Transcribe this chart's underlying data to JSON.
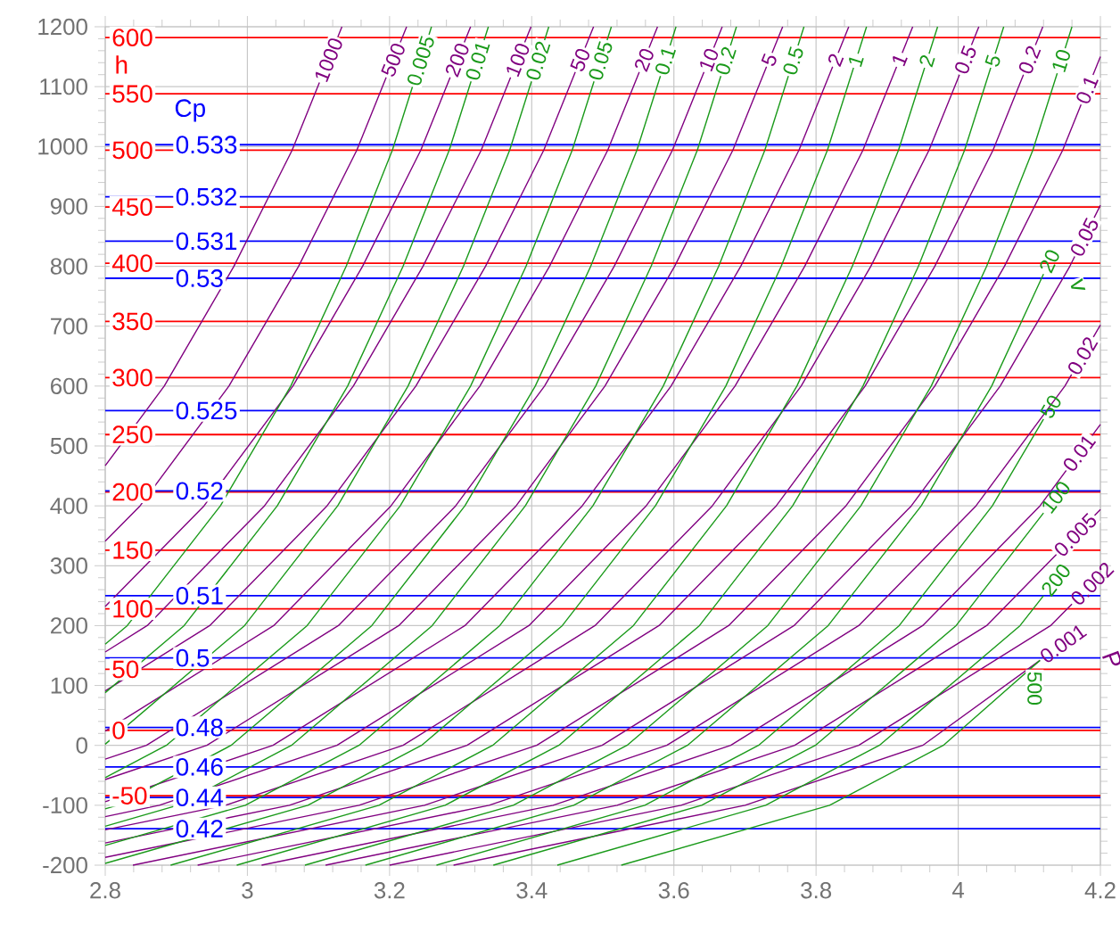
{
  "chart_data": {
    "type": "line",
    "xlim": [
      2.8,
      4.2
    ],
    "ylim": [
      -200,
      1200
    ],
    "xticks": [
      2.8,
      3,
      3.2,
      3.4,
      3.6,
      3.8,
      4,
      4.2
    ],
    "yticks": [
      -200,
      -100,
      0,
      100,
      200,
      300,
      400,
      500,
      600,
      700,
      800,
      900,
      1000,
      1100,
      1200
    ],
    "grid": true,
    "marker": "none",
    "line_style": "solid",
    "annotations": [
      "h",
      "Cp",
      "v",
      "P"
    ],
    "series": [
      {
        "name": "600",
        "color": "#ff0000",
        "x": [
          2.8,
          4.2
        ],
        "values": [
          1182,
          1182
        ]
      },
      {
        "name": "550",
        "color": "#ff0000",
        "x": [
          2.8,
          4.2
        ],
        "values": [
          1088,
          1088
        ]
      },
      {
        "name": "500",
        "color": "#ff0000",
        "x": [
          2.8,
          4.2
        ],
        "values": [
          994,
          994
        ]
      },
      {
        "name": "450",
        "color": "#ff0000",
        "x": [
          2.8,
          4.2
        ],
        "values": [
          899,
          899
        ]
      },
      {
        "name": "400",
        "color": "#ff0000",
        "x": [
          2.8,
          4.2
        ],
        "values": [
          805,
          805
        ]
      },
      {
        "name": "350",
        "color": "#ff0000",
        "x": [
          2.8,
          4.2
        ],
        "values": [
          708,
          708
        ]
      },
      {
        "name": "300",
        "color": "#ff0000",
        "x": [
          2.8,
          4.2
        ],
        "values": [
          614,
          614
        ]
      },
      {
        "name": "250",
        "color": "#ff0000",
        "x": [
          2.8,
          4.2
        ],
        "values": [
          519,
          519
        ]
      },
      {
        "name": "200",
        "color": "#ff0000",
        "x": [
          2.8,
          4.2
        ],
        "values": [
          423,
          423
        ]
      },
      {
        "name": "150",
        "color": "#ff0000",
        "x": [
          2.8,
          4.2
        ],
        "values": [
          326,
          326
        ]
      },
      {
        "name": "100",
        "color": "#ff0000",
        "x": [
          2.8,
          4.2
        ],
        "values": [
          228,
          228
        ]
      },
      {
        "name": "50",
        "color": "#ff0000",
        "x": [
          2.8,
          4.2
        ],
        "values": [
          127,
          127
        ]
      },
      {
        "name": "0",
        "color": "#ff0000",
        "x": [
          2.8,
          4.2
        ],
        "values": [
          25,
          25
        ]
      },
      {
        "name": "-50",
        "color": "#ff0000",
        "x": [
          2.8,
          4.2
        ],
        "values": [
          -84,
          -84
        ]
      },
      {
        "name": "0.533",
        "color": "#0000ff",
        "x": [
          2.8,
          4.2
        ],
        "values": [
          1003,
          1003
        ]
      },
      {
        "name": "0.532",
        "color": "#0000ff",
        "x": [
          2.8,
          4.2
        ],
        "values": [
          916,
          916
        ]
      },
      {
        "name": "0.531",
        "color": "#0000ff",
        "x": [
          2.8,
          4.2
        ],
        "values": [
          842,
          842
        ]
      },
      {
        "name": "0.53",
        "color": "#0000ff",
        "x": [
          2.8,
          4.2
        ],
        "values": [
          780,
          780
        ]
      },
      {
        "name": "0.525",
        "color": "#0000ff",
        "x": [
          2.8,
          4.2
        ],
        "values": [
          559,
          559
        ]
      },
      {
        "name": "0.52",
        "color": "#0000ff",
        "x": [
          2.8,
          4.2
        ],
        "values": [
          425,
          425
        ]
      },
      {
        "name": "0.51",
        "color": "#0000ff",
        "x": [
          2.8,
          4.2
        ],
        "values": [
          250,
          250
        ]
      },
      {
        "name": "0.5",
        "color": "#0000ff",
        "x": [
          2.8,
          4.2
        ],
        "values": [
          146,
          146
        ]
      },
      {
        "name": "0.48",
        "color": "#0000ff",
        "x": [
          2.8,
          4.2
        ],
        "values": [
          30,
          30
        ]
      },
      {
        "name": "0.46",
        "color": "#0000ff",
        "x": [
          2.8,
          4.2
        ],
        "values": [
          -36,
          -36
        ]
      },
      {
        "name": "0.44",
        "color": "#0000ff",
        "x": [
          2.8,
          4.2
        ],
        "values": [
          -87,
          -87
        ]
      },
      {
        "name": "0.42",
        "color": "#0000ff",
        "x": [
          2.8,
          4.2
        ],
        "values": [
          -139,
          -139
        ]
      },
      {
        "name": "1000",
        "color": "#800080",
        "x": [
          2.8,
          2.883,
          2.981,
          3.063,
          3.133
        ],
        "values": [
          467,
          600,
          800,
          994,
          1200
        ]
      },
      {
        "name": "500",
        "color": "#800080",
        "x": [
          2.8,
          2.849,
          2.974,
          3.072,
          3.154,
          3.224
        ],
        "values": [
          341,
          400,
          600,
          800,
          994,
          1200
        ]
      },
      {
        "name": "200",
        "color": "#800080",
        "x": [
          2.8,
          2.939,
          3.064,
          3.162,
          3.244,
          3.314
        ],
        "values": [
          232,
          400,
          600,
          800,
          994,
          1200
        ]
      },
      {
        "name": "100",
        "color": "#800080",
        "x": [
          2.8,
          2.859,
          3.024,
          3.149,
          3.247,
          3.329,
          3.399
        ],
        "values": [
          156,
          200,
          400,
          600,
          800,
          994,
          1200
        ]
      },
      {
        "name": "50",
        "color": "#800080",
        "x": [
          2.8,
          2.947,
          3.112,
          3.237,
          3.335,
          3.417,
          3.487
        ],
        "values": [
          91,
          200,
          400,
          600,
          800,
          994,
          1200
        ]
      },
      {
        "name": "20",
        "color": "#800080",
        "x": [
          2.8,
          3.037,
          3.202,
          3.327,
          3.425,
          3.507,
          3.577
        ],
        "values": [
          24,
          200,
          400,
          600,
          800,
          994,
          1200
        ]
      },
      {
        "name": "10",
        "color": "#800080",
        "x": [
          2.8,
          2.858,
          3.128,
          3.293,
          3.418,
          3.516,
          3.598,
          3.668
        ],
        "values": [
          -23,
          0,
          200,
          400,
          600,
          800,
          994,
          1200
        ]
      },
      {
        "name": "5",
        "color": "#800080",
        "x": [
          2.8,
          2.943,
          3.213,
          3.378,
          3.503,
          3.601,
          3.683,
          3.753
        ],
        "values": [
          -57,
          0,
          200,
          400,
          600,
          800,
          994,
          1200
        ]
      },
      {
        "name": "2",
        "color": "#800080",
        "x": [
          2.8,
          3.036,
          3.306,
          3.471,
          3.596,
          3.694,
          3.776,
          3.846
        ],
        "values": [
          -94,
          0,
          200,
          400,
          600,
          800,
          994,
          1200
        ]
      },
      {
        "name": "1",
        "color": "#800080",
        "x": [
          2.8,
          2.876,
          3.126,
          3.396,
          3.561,
          3.686,
          3.784,
          3.866,
          3.936
        ],
        "values": [
          -119,
          -100,
          0,
          200,
          400,
          600,
          800,
          994,
          1200
        ]
      },
      {
        "name": "0.5",
        "color": "#800080",
        "x": [
          2.8,
          2.969,
          3.219,
          3.489,
          3.654,
          3.779,
          3.877,
          3.959,
          4.029
        ],
        "values": [
          -141,
          -100,
          0,
          200,
          400,
          600,
          800,
          994,
          1200
        ]
      },
      {
        "name": "0.2",
        "color": "#800080",
        "x": [
          2.8,
          3.059,
          3.309,
          3.579,
          3.744,
          3.869,
          3.967,
          4.049,
          4.119
        ],
        "values": [
          -163,
          -100,
          0,
          200,
          400,
          600,
          800,
          994,
          1200
        ]
      },
      {
        "name": "0.1",
        "color": "#800080",
        "x": [
          2.8,
          3.157,
          3.407,
          3.677,
          3.842,
          3.967,
          4.065,
          4.147,
          4.2
        ],
        "values": [
          -187,
          -100,
          0,
          200,
          400,
          600,
          800,
          994,
          1150
        ]
      },
      {
        "name": "0.05",
        "color": "#800080",
        "x": [
          2.839,
          3.249,
          3.499,
          3.769,
          3.934,
          4.059,
          4.157,
          4.2
        ],
        "values": [
          -200,
          -100,
          0,
          200,
          400,
          600,
          800,
          902
        ]
      },
      {
        "name": "0.02",
        "color": "#800080",
        "x": [
          2.93,
          3.34,
          3.59,
          3.86,
          4.025,
          4.15,
          4.2
        ],
        "values": [
          -200,
          -100,
          0,
          200,
          400,
          600,
          702
        ]
      },
      {
        "name": "0.01",
        "color": "#800080",
        "x": [
          3.02,
          3.43,
          3.68,
          3.95,
          4.115,
          4.2
        ],
        "values": [
          -200,
          -100,
          0,
          200,
          400,
          536
        ]
      },
      {
        "name": "0.005",
        "color": "#800080",
        "x": [
          3.11,
          3.52,
          3.77,
          4.04,
          4.2
        ],
        "values": [
          -200,
          -100,
          0,
          200,
          394
        ]
      },
      {
        "name": "0.002",
        "color": "#800080",
        "x": [
          3.2,
          3.61,
          3.86,
          4.13,
          4.16
        ],
        "values": [
          -200,
          -100,
          0,
          200,
          236
        ]
      },
      {
        "name": "0.001",
        "color": "#800080",
        "x": [
          3.29,
          3.7,
          3.95,
          4.115
        ],
        "values": [
          -200,
          -100,
          0,
          142
        ]
      },
      {
        "name": "0.005",
        "color": "#1a9a1a",
        "x": [
          2.8,
          2.831,
          2.962,
          3.061,
          3.139,
          3.204,
          3.259
        ],
        "values": [
          169,
          200,
          400,
          600,
          800,
          994,
          1200
        ]
      },
      {
        "name": "0.01",
        "color": "#1a9a1a",
        "x": [
          2.8,
          2.911,
          3.042,
          3.141,
          3.219,
          3.284,
          3.339
        ],
        "values": [
          88,
          200,
          400,
          600,
          800,
          994,
          1200
        ]
      },
      {
        "name": "0.02",
        "color": "#1a9a1a",
        "x": [
          2.8,
          2.996,
          3.127,
          3.226,
          3.304,
          3.369,
          3.424
        ],
        "values": [
          2,
          200,
          400,
          600,
          800,
          994,
          1200
        ]
      },
      {
        "name": "0.05",
        "color": "#1a9a1a",
        "x": [
          2.8,
          2.886,
          3.084,
          3.215,
          3.314,
          3.392,
          3.457,
          3.512
        ],
        "values": [
          -54,
          0,
          200,
          400,
          600,
          800,
          994,
          1200
        ]
      },
      {
        "name": "0.1",
        "color": "#1a9a1a",
        "x": [
          2.8,
          2.817,
          2.977,
          3.175,
          3.306,
          3.405,
          3.483,
          3.548,
          3.603
        ],
        "values": [
          -106,
          -100,
          0,
          200,
          400,
          600,
          800,
          994,
          1200
        ]
      },
      {
        "name": "0.2",
        "color": "#1a9a1a",
        "x": [
          2.8,
          2.902,
          3.062,
          3.26,
          3.391,
          3.49,
          3.568,
          3.633,
          3.688
        ],
        "values": [
          -135,
          -100,
          0,
          200,
          400,
          600,
          800,
          994,
          1200
        ]
      },
      {
        "name": "0.5",
        "color": "#1a9a1a",
        "x": [
          2.8,
          2.997,
          3.157,
          3.355,
          3.486,
          3.585,
          3.663,
          3.728,
          3.783
        ],
        "values": [
          -167,
          -100,
          0,
          200,
          400,
          600,
          800,
          994,
          1200
        ]
      },
      {
        "name": "1",
        "color": "#1a9a1a",
        "x": [
          2.8,
          3.085,
          3.245,
          3.443,
          3.574,
          3.673,
          3.751,
          3.816,
          3.871
        ],
        "values": [
          -197,
          -100,
          0,
          200,
          400,
          600,
          800,
          994,
          1200
        ]
      },
      {
        "name": "2",
        "color": "#1a9a1a",
        "x": [
          2.892,
          3.185,
          3.345,
          3.543,
          3.674,
          3.773,
          3.851,
          3.916,
          3.971
        ],
        "values": [
          -200,
          -100,
          0,
          200,
          400,
          600,
          800,
          994,
          1200
        ]
      },
      {
        "name": "5",
        "color": "#1a9a1a",
        "x": [
          2.985,
          3.278,
          3.438,
          3.636,
          3.767,
          3.866,
          3.944,
          4.009,
          4.064
        ],
        "values": [
          -200,
          -100,
          0,
          200,
          400,
          600,
          800,
          994,
          1200
        ]
      },
      {
        "name": "10",
        "color": "#1a9a1a",
        "x": [
          3.081,
          3.374,
          3.534,
          3.732,
          3.863,
          3.962,
          4.04,
          4.105,
          4.16
        ],
        "values": [
          -200,
          -100,
          0,
          200,
          400,
          600,
          800,
          994,
          1200
        ]
      },
      {
        "name": "20",
        "color": "#1a9a1a",
        "x": [
          3.166,
          3.459,
          3.619,
          3.817,
          3.948,
          4.047,
          4.12
        ],
        "values": [
          -200,
          -100,
          0,
          200,
          400,
          600,
          787
        ]
      },
      {
        "name": "50",
        "color": "#1a9a1a",
        "x": [
          3.266,
          3.559,
          3.719,
          3.917,
          4.048,
          4.12
        ],
        "values": [
          -200,
          -100,
          0,
          200,
          400,
          545
        ]
      },
      {
        "name": "100",
        "color": "#1a9a1a",
        "x": [
          3.346,
          3.639,
          3.799,
          3.997,
          4.12
        ],
        "values": [
          -200,
          -100,
          0,
          200,
          388
        ]
      },
      {
        "name": "200",
        "color": "#1a9a1a",
        "x": [
          3.436,
          3.729,
          3.889,
          4.087,
          4.12
        ],
        "values": [
          -200,
          -100,
          0,
          200,
          250
        ]
      },
      {
        "name": "500",
        "color": "#1a9a1a",
        "x": [
          3.526,
          3.819,
          3.979,
          4.115
        ],
        "values": [
          -200,
          -100,
          0,
          142
        ]
      }
    ]
  }
}
